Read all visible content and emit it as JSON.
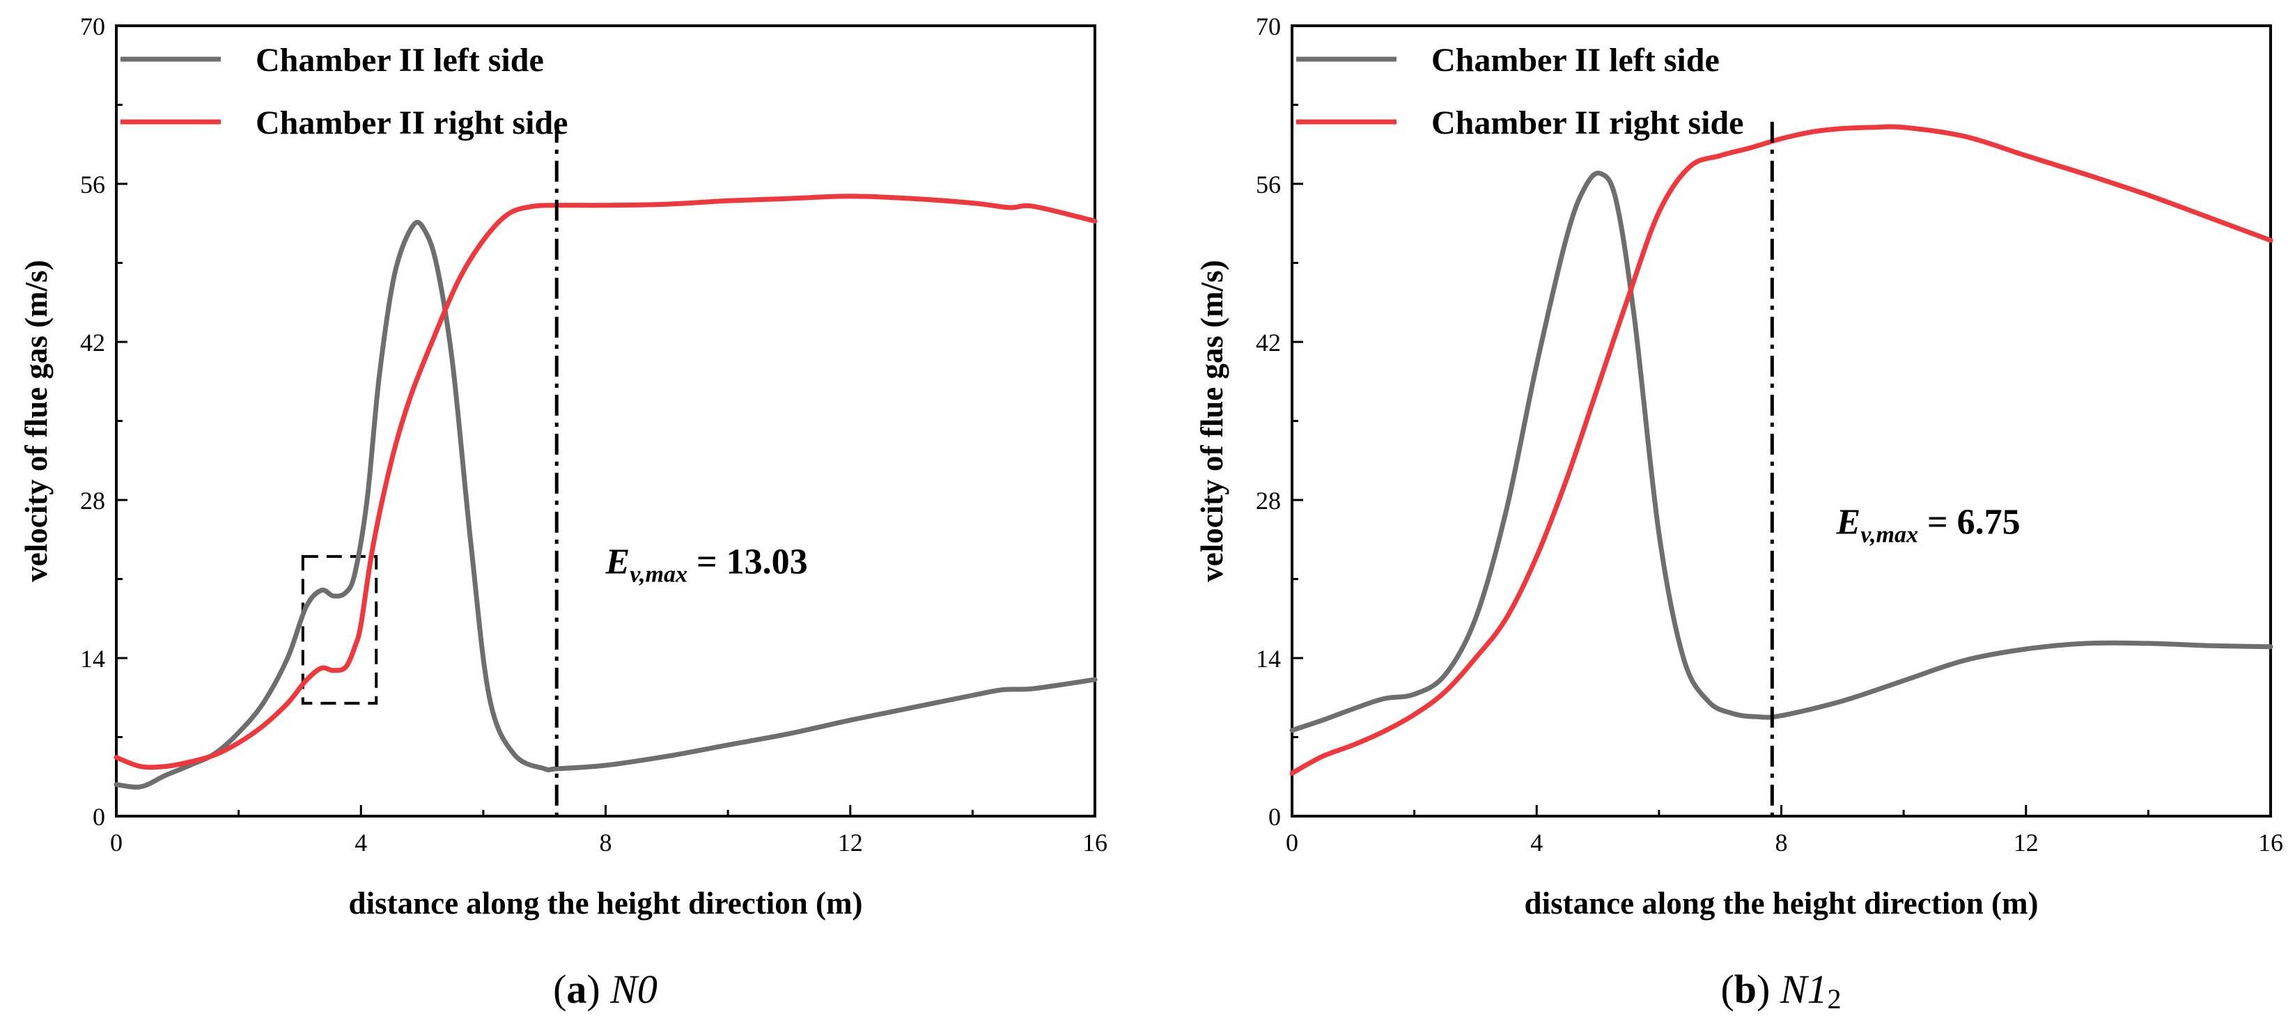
{
  "colors": {
    "left_side": "#6e6e6e",
    "right_side": "#f0383c",
    "axis": "#000000"
  },
  "chart_data": [
    {
      "type": "line",
      "panel_label": "a",
      "caption_name": "N0",
      "xlabel": "distance along the height direction (m)",
      "ylabel": "velocity of flue gas  (m/s)",
      "xlim": [
        0,
        16
      ],
      "ylim": [
        0,
        70
      ],
      "xticks": [
        "0",
        "4",
        "8",
        "12",
        "16"
      ],
      "yticks": [
        "0",
        "14",
        "28",
        "42",
        "56",
        "70"
      ],
      "legend": [
        "Chamber II left side",
        "Chamber II right side"
      ],
      "legend_position": "top-left",
      "series": [
        {
          "name": "Chamber II left side",
          "color": "#6e6e6e",
          "x": [
            0,
            0.4,
            0.8,
            1.2,
            1.6,
            2.0,
            2.4,
            2.8,
            3.1,
            3.35,
            3.55,
            3.75,
            3.9,
            4.1,
            4.3,
            4.55,
            4.85,
            5.05,
            5.25,
            5.5,
            5.8,
            6.1,
            6.5,
            7.0,
            7.2,
            8,
            9,
            10,
            11,
            12,
            13,
            14,
            14.5,
            15,
            16
          ],
          "y": [
            2.8,
            2.6,
            3.6,
            4.5,
            5.5,
            7.4,
            10.0,
            14.0,
            18.5,
            20.0,
            19.5,
            19.8,
            21.5,
            28.0,
            39.0,
            48.0,
            52.3,
            51.8,
            48.5,
            40.0,
            24.0,
            10.5,
            5.5,
            4.2,
            4.2,
            4.5,
            5.3,
            6.3,
            7.3,
            8.5,
            9.6,
            10.7,
            11.2,
            11.3,
            12.1
          ]
        },
        {
          "name": "Chamber II right side",
          "color": "#f0383c",
          "x": [
            0,
            0.4,
            0.8,
            1.2,
            1.6,
            2.0,
            2.4,
            2.8,
            3.1,
            3.35,
            3.55,
            3.75,
            3.9,
            4.0,
            4.2,
            4.5,
            4.8,
            5.2,
            5.6,
            6.0,
            6.4,
            6.8,
            7.2,
            8,
            9,
            10,
            11,
            12,
            13,
            14,
            14.6,
            15,
            16
          ],
          "y": [
            5.2,
            4.4,
            4.4,
            4.8,
            5.4,
            6.5,
            8.0,
            10.0,
            12.0,
            13.1,
            12.9,
            13.2,
            15.0,
            17.0,
            24.0,
            31.5,
            37.0,
            42.5,
            47.5,
            51.0,
            53.3,
            54.0,
            54.1,
            54.1,
            54.2,
            54.5,
            54.7,
            54.9,
            54.7,
            54.3,
            53.9,
            54.0,
            52.7
          ]
        }
      ],
      "vline_x": 7.2,
      "annotation": {
        "var": "E",
        "sub": "v,max",
        "eq": " = ",
        "value": "13.03",
        "x": 8.0,
        "y": 21.5
      },
      "dashed_box": {
        "x0": 3.05,
        "x1": 4.25,
        "y0": 10.0,
        "y1": 23.0
      }
    },
    {
      "type": "line",
      "panel_label": "b",
      "caption_name": "N1",
      "caption_sub": "2",
      "xlabel": "distance along the height direction (m)",
      "ylabel": "velocity of flue gas  (m/s)",
      "xlim": [
        0,
        16
      ],
      "ylim": [
        0,
        70
      ],
      "xticks": [
        "0",
        "4",
        "8",
        "12",
        "16"
      ],
      "yticks": [
        "0",
        "14",
        "28",
        "42",
        "56",
        "70"
      ],
      "legend": [
        "Chamber II left side",
        "Chamber II right side"
      ],
      "legend_position": "top-left",
      "series": [
        {
          "name": "Chamber II left side",
          "color": "#6e6e6e",
          "x": [
            0,
            0.5,
            1.0,
            1.5,
            2.0,
            2.5,
            3.0,
            3.5,
            4.0,
            4.5,
            4.8,
            5.05,
            5.3,
            5.6,
            6.0,
            6.4,
            6.8,
            7.2,
            7.6,
            8,
            9,
            10,
            11,
            12,
            13,
            14,
            15,
            16
          ],
          "y": [
            7.6,
            8.5,
            9.5,
            10.4,
            10.8,
            12.5,
            17.5,
            27.0,
            40.0,
            51.5,
            55.8,
            56.9,
            54.5,
            44.0,
            25.0,
            14.0,
            10.2,
            9.1,
            8.8,
            8.9,
            10.2,
            12.0,
            13.8,
            14.8,
            15.3,
            15.3,
            15.1,
            15.0
          ]
        },
        {
          "name": "Chamber II right side",
          "color": "#f0383c",
          "x": [
            0,
            0.5,
            1.0,
            1.5,
            2.0,
            2.5,
            3.0,
            3.5,
            4.0,
            4.5,
            5.0,
            5.5,
            6.0,
            6.5,
            7.0,
            7.5,
            8,
            8.5,
            9,
            9.5,
            10,
            11,
            12,
            13,
            14,
            15,
            16
          ],
          "y": [
            3.8,
            5.3,
            6.3,
            7.5,
            9.0,
            11.0,
            14.0,
            17.5,
            23.0,
            30.0,
            38.0,
            46.0,
            53.5,
            57.5,
            58.5,
            59.2,
            60.0,
            60.6,
            60.9,
            61.0,
            61.0,
            60.2,
            58.5,
            56.8,
            55.0,
            53.0,
            51.0
          ]
        }
      ],
      "vline_x": 7.85,
      "annotation": {
        "var": "E",
        "sub": "v,max",
        "eq": " = ",
        "value": "6.75",
        "x": 8.9,
        "y": 25.0
      }
    }
  ]
}
